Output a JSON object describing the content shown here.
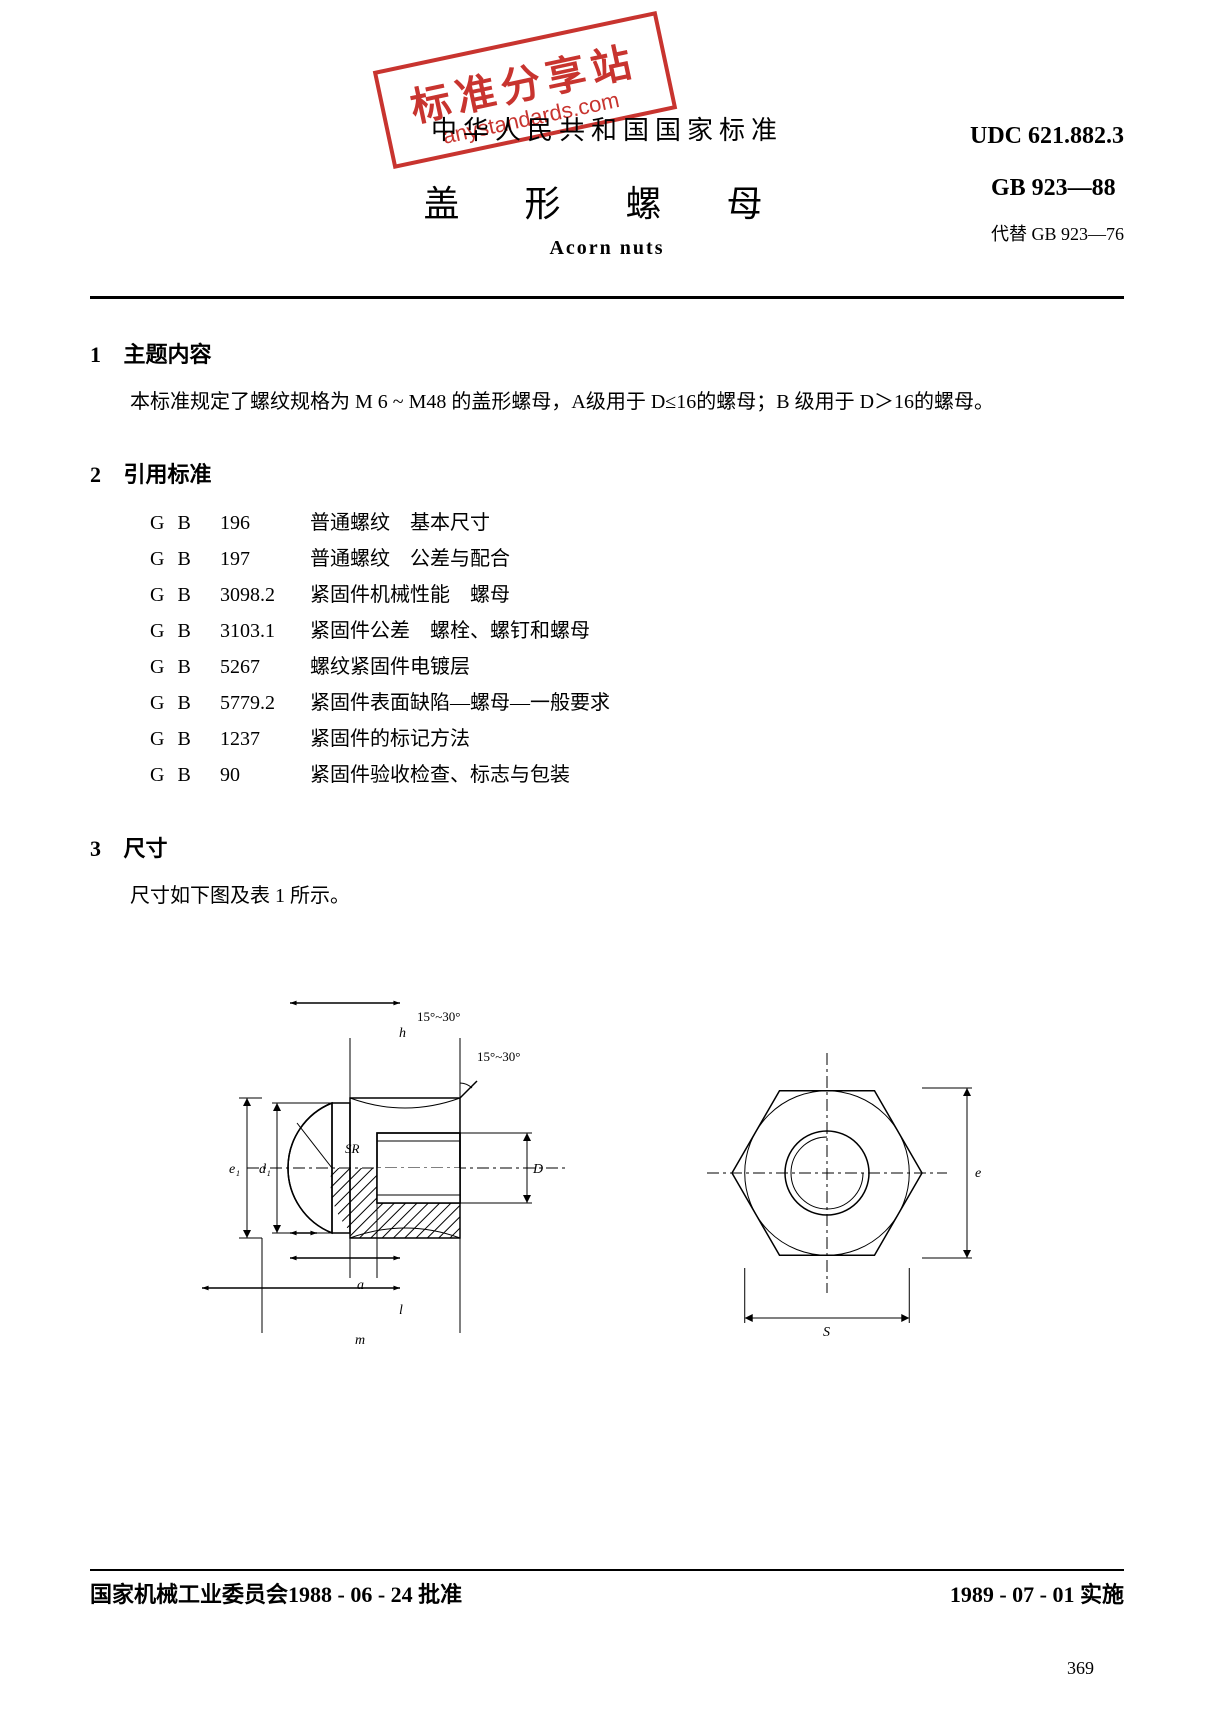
{
  "stamp": {
    "cn": "标准分享站",
    "en": "anystandards.com"
  },
  "header": {
    "country": "中华人民共和国国家标准",
    "title_cn": "盖 形 螺 母",
    "title_en": "Acorn nuts",
    "udc": "UDC 621.882.3",
    "gb": "GB 923—88",
    "replace": "代替 GB 923—76"
  },
  "sections": {
    "s1": {
      "num": "1",
      "title": "主题内容",
      "body": "本标准规定了螺纹规格为 M 6 ~ M48 的盖形螺母，A级用于 D≤16的螺母；B 级用于 D＞16的螺母。"
    },
    "s2": {
      "num": "2",
      "title": "引用标准"
    },
    "s3": {
      "num": "3",
      "title": "尺寸",
      "body": "尺寸如下图及表 1 所示。"
    }
  },
  "refs": [
    {
      "code": "G B",
      "num": "196",
      "desc": "普通螺纹　基本尺寸"
    },
    {
      "code": "G B",
      "num": "197",
      "desc": "普通螺纹　公差与配合"
    },
    {
      "code": "G B",
      "num": "3098.2",
      "desc": "紧固件机械性能　螺母"
    },
    {
      "code": "G B",
      "num": "3103.1",
      "desc": "紧固件公差　螺栓、螺钉和螺母"
    },
    {
      "code": "G B",
      "num": "5267",
      "desc": "螺纹紧固件电镀层"
    },
    {
      "code": "G B",
      "num": "5779.2",
      "desc": "紧固件表面缺陷—螺母—一般要求"
    },
    {
      "code": "G B",
      "num": "1237",
      "desc": "紧固件的标记方法"
    },
    {
      "code": "G B",
      "num": "90",
      "desc": "紧固件验收检查、标志与包装"
    }
  ],
  "figure": {
    "labels": {
      "h": "h",
      "angle": "15°~30°",
      "SR": "SR",
      "D": "D",
      "d1": "d₁",
      "e1": "e₁",
      "a": "a",
      "l": "l",
      "m": "m",
      "s": "S",
      "e": "e"
    },
    "colors": {
      "stroke": "#000000",
      "hatch": "#000000",
      "bg": "#ffffff"
    },
    "stroke_width": 1.5
  },
  "footer": {
    "left": "国家机械工业委员会1988 - 06 - 24 批准",
    "right": "1989 - 07 - 01 实施",
    "page": "369"
  }
}
